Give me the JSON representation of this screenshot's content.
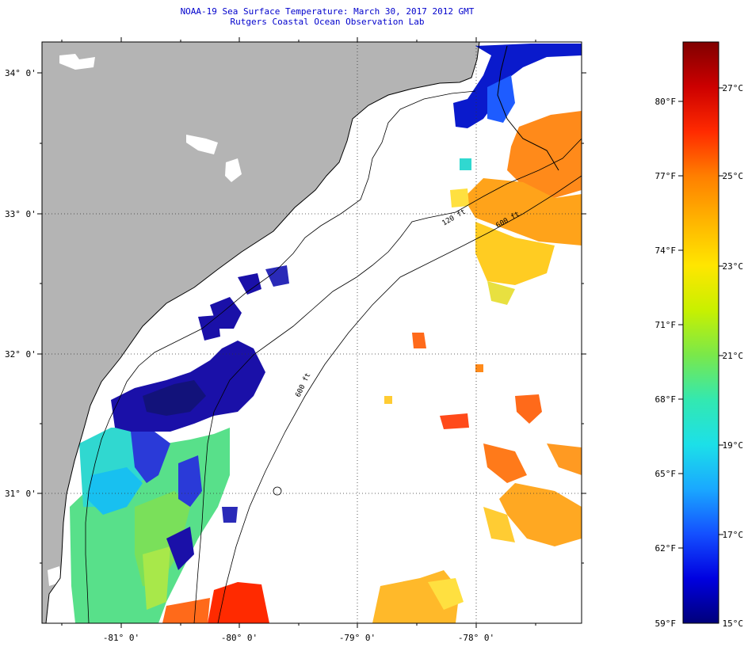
{
  "header": {
    "title_line1": "NOAA-19 Sea Surface Temperature:  March 30, 2017 2012 GMT",
    "title_line2": "Rutgers Coastal Ocean Observation Lab"
  },
  "map": {
    "lat_labels": [
      "34° 0'",
      "33° 0'",
      "32° 0'",
      "31° 0'"
    ],
    "lon_labels": [
      "-81° 0'",
      "-80° 0'",
      "-79° 0'",
      "-78° 0'"
    ],
    "contour_labels": [
      "120 ft",
      "600 ft",
      "600 ft"
    ],
    "colors": {
      "land": "#b4b4b4",
      "ocean_nodata": "#ffffff",
      "coastline": "#000000",
      "title": "#0000cc"
    }
  },
  "colorbar": {
    "f_labels": [
      "80°F",
      "77°F",
      "74°F",
      "71°F",
      "68°F",
      "65°F",
      "62°F",
      "59°F"
    ],
    "c_labels": [
      "27°C",
      "25°C",
      "23°C",
      "21°C",
      "19°C",
      "17°C",
      "15°C"
    ],
    "colors": [
      "#800000",
      "#cc0000",
      "#ff2a00",
      "#ff7f00",
      "#ffb400",
      "#ffe600",
      "#c8f000",
      "#7ae84a",
      "#33e8b0",
      "#1ce0e8",
      "#1aa8ff",
      "#1450ff",
      "#0000e0",
      "#00007a"
    ]
  }
}
